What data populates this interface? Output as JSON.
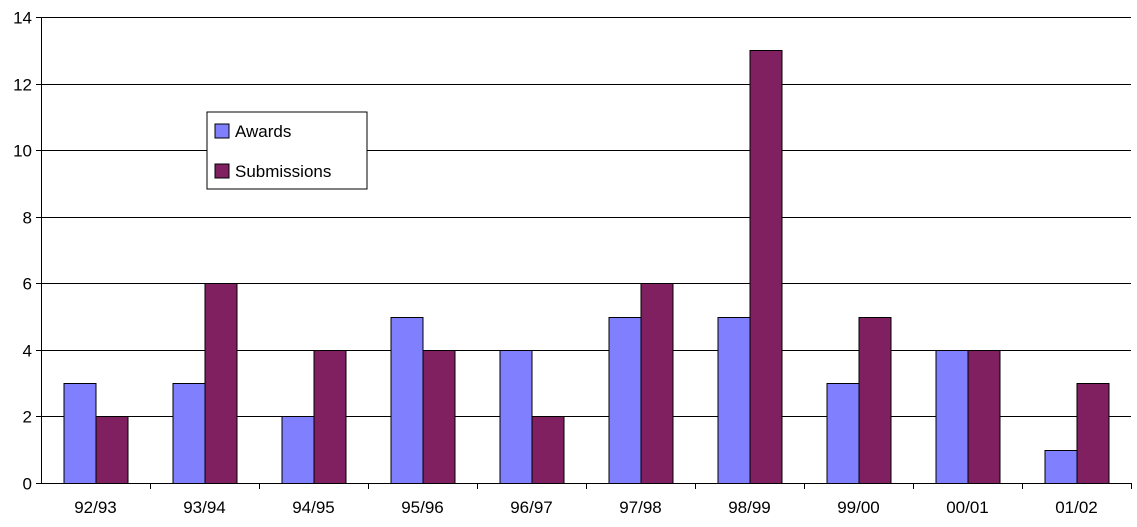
{
  "chart_data": {
    "type": "bar",
    "categories": [
      "92/93",
      "93/94",
      "94/95",
      "95/96",
      "96/97",
      "97/98",
      "98/99",
      "99/00",
      "00/01",
      "01/02"
    ],
    "series": [
      {
        "name": "Awards",
        "color": "#8080ff",
        "values": [
          3,
          3,
          2,
          5,
          4,
          5,
          5,
          3,
          4,
          1
        ]
      },
      {
        "name": "Submissions",
        "color": "#802060",
        "values": [
          2,
          6,
          4,
          4,
          2,
          6,
          13,
          5,
          4,
          3
        ]
      }
    ],
    "ylim": [
      0,
      14
    ],
    "yticks": [
      0,
      2,
      4,
      6,
      8,
      10,
      12,
      14
    ],
    "grid": true,
    "legend_position": "upper-left"
  }
}
